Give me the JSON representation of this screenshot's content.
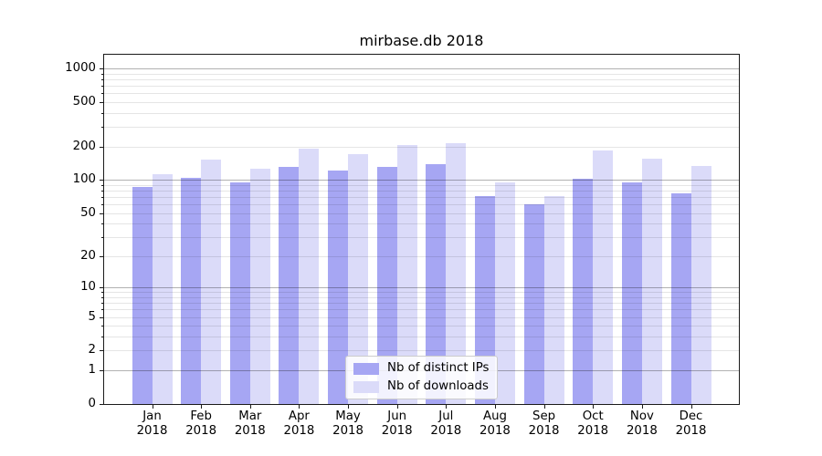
{
  "chart_data": {
    "type": "bar",
    "title": "mirbase.db 2018",
    "categories": [
      "Jan",
      "Feb",
      "Mar",
      "Apr",
      "May",
      "Jun",
      "Jul",
      "Aug",
      "Sep",
      "Oct",
      "Nov",
      "Dec"
    ],
    "x_sublabel": "2018",
    "series": [
      {
        "name": "Nb of distinct IPs",
        "color": "#a6a6f3",
        "values": [
          86,
          105,
          94,
          131,
          121,
          130,
          138,
          71,
          60,
          102,
          94,
          76
        ]
      },
      {
        "name": "Nb of downloads",
        "color": "#dbdbf9",
        "values": [
          112,
          153,
          125,
          190,
          169,
          205,
          215,
          94,
          71,
          183,
          156,
          133
        ]
      }
    ],
    "yscale": "log1p",
    "yticks": [
      0,
      1,
      2,
      5,
      10,
      20,
      50,
      100,
      200,
      500,
      1000
    ],
    "ylim": [
      0,
      1300
    ],
    "grid": true,
    "legend_position": "lower center",
    "colors": {
      "major_grid": "#b3b3b3",
      "minor_grid": "#e6e6e6",
      "axis": "#1a1a1a"
    }
  }
}
